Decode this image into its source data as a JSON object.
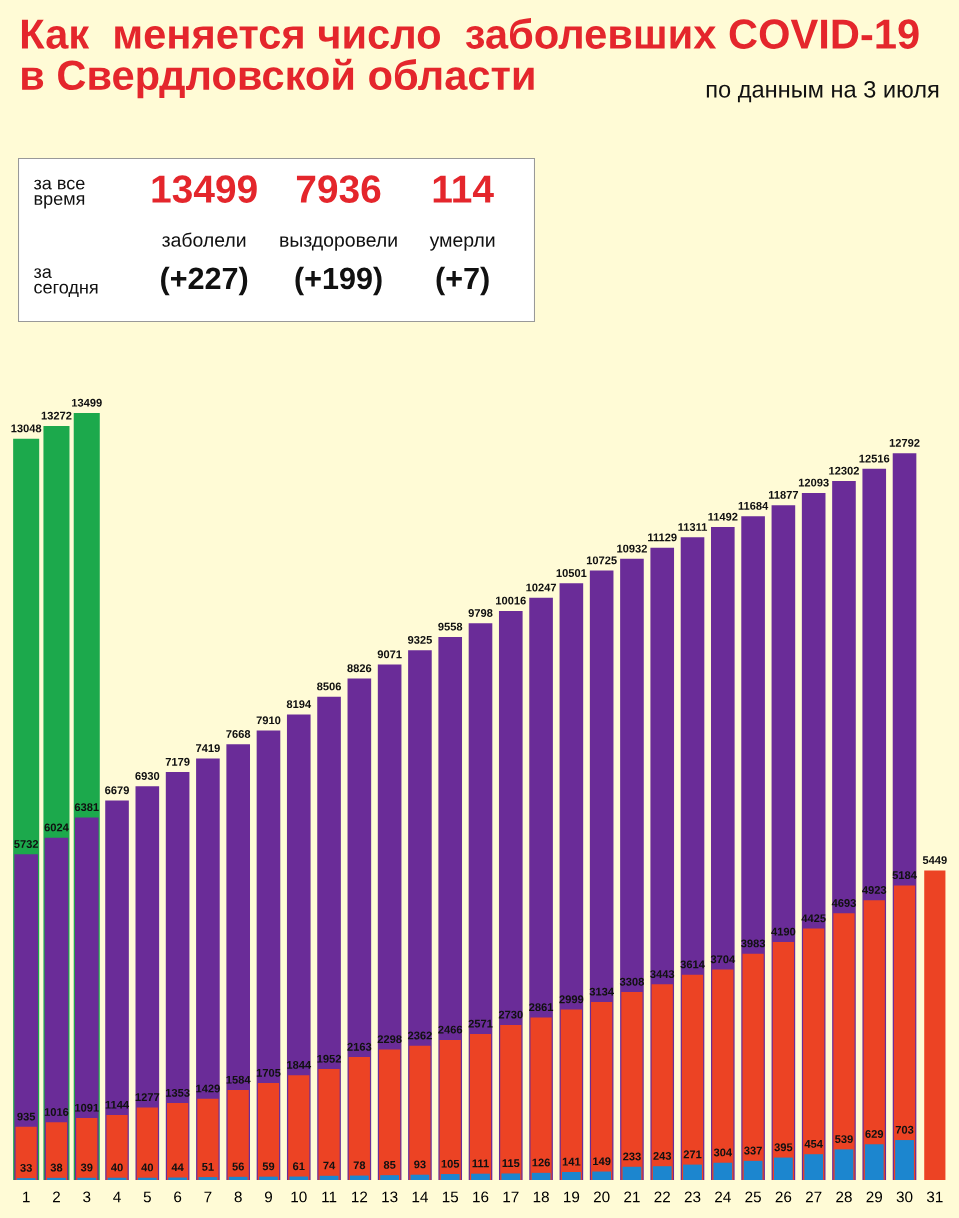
{
  "chart_data": [
    {
      "type": "other",
      "title": "Как  меняется число  заболевших COVID-19\nв Свердловской области",
      "subtitle": "по данным на 3 июля",
      "annotations": [
        "за все\nвремя",
        "13499",
        "7936",
        "114",
        "заболели",
        "выздоровели",
        "умерли",
        "за\nсегодня",
        "(+227)",
        "(+199)",
        "(+7)"
      ]
    },
    {
      "type": "bar",
      "categories": [
        "1",
        "2",
        "3",
        "4",
        "5",
        "6",
        "7",
        "8",
        "9",
        "10",
        "11",
        "12",
        "13",
        "14",
        "15",
        "16",
        "17",
        "18",
        "19",
        "20",
        "21",
        "22",
        "23",
        "24",
        "25",
        "26",
        "27",
        "28",
        "29",
        "30",
        "31"
      ],
      "series": [
        {
          "color": "#1ca94c",
          "values": [
            13048,
            13272,
            13499,
            null,
            null,
            null,
            null,
            null,
            null,
            null,
            null,
            null,
            null,
            null,
            null,
            null,
            null,
            null,
            null,
            null,
            null,
            null,
            null,
            null,
            null,
            null,
            null,
            null,
            null,
            null,
            null
          ]
        },
        {
          "color": "#6a2c98",
          "values": [
            5732,
            6024,
            6381,
            6679,
            6930,
            7179,
            7419,
            7668,
            7910,
            8194,
            8506,
            8826,
            9071,
            9325,
            9558,
            9798,
            10016,
            10247,
            10501,
            10725,
            10932,
            11129,
            11311,
            11492,
            11684,
            11877,
            12093,
            12302,
            12516,
            12792,
            null
          ]
        },
        {
          "color": "#ec4324",
          "values": [
            935,
            1016,
            1091,
            1144,
            1277,
            1353,
            1429,
            1584,
            1705,
            1844,
            1952,
            2163,
            2298,
            2362,
            2466,
            2571,
            2730,
            2861,
            2999,
            3134,
            3308,
            3443,
            3614,
            3704,
            3983,
            4190,
            4425,
            4693,
            4923,
            5184,
            5449
          ]
        },
        {
          "color": "#1c86cf",
          "values": [
            33,
            38,
            39,
            40,
            40,
            44,
            51,
            56,
            59,
            61,
            74,
            78,
            85,
            93,
            105,
            111,
            115,
            126,
            141,
            149,
            233,
            243,
            271,
            304,
            337,
            395,
            454,
            539,
            629,
            703,
            null
          ]
        }
      ],
      "data_labels": true,
      "tick_labels": "x"
    }
  ]
}
